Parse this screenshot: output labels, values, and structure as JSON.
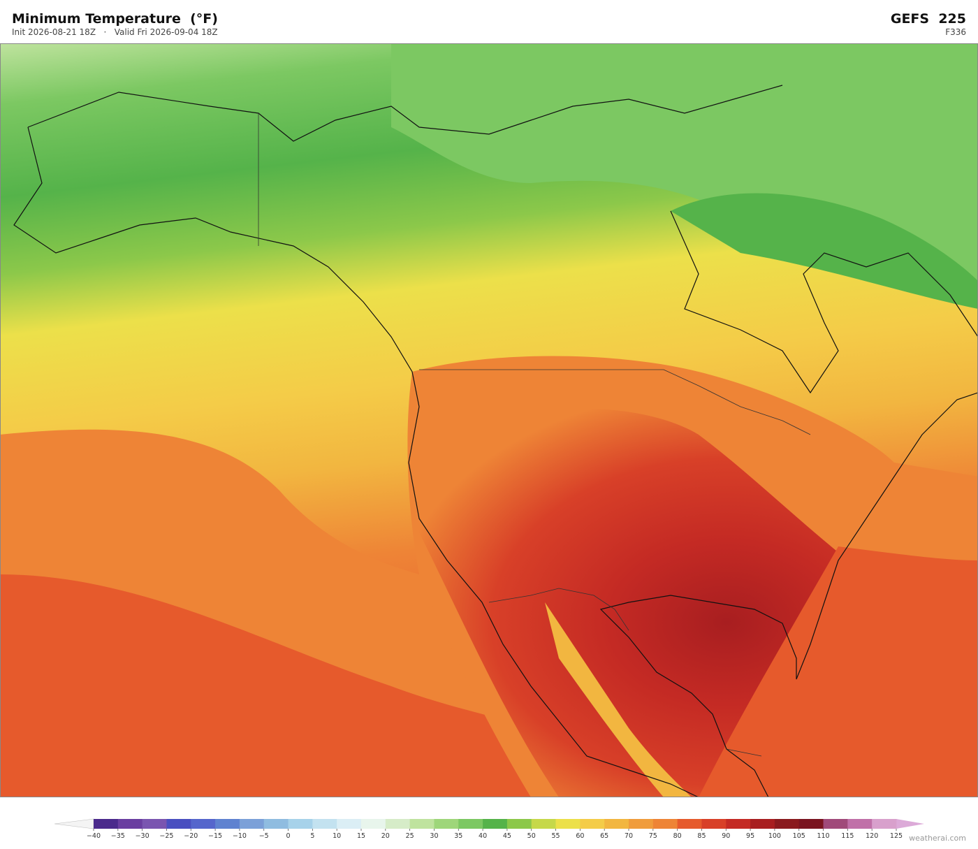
{
  "header": {
    "title": "Minimum Temperature  (°F)",
    "subtitle": "Init 2026-08-21 18Z   ·   Valid Fri 2026-09-04 18Z",
    "model": "GEFS  225",
    "forecast_hour": "F336"
  },
  "colorbar": {
    "ticks": [
      {
        "value": -40,
        "label": "−40"
      },
      {
        "value": -35,
        "label": "−35"
      },
      {
        "value": -30,
        "label": "−30"
      },
      {
        "value": -25,
        "label": "−25"
      },
      {
        "value": -20,
        "label": "−20"
      },
      {
        "value": -15,
        "label": "−15"
      },
      {
        "value": -10,
        "label": "−10"
      },
      {
        "value": -5,
        "label": "−5"
      },
      0,
      5,
      10,
      15,
      20,
      25,
      30,
      35,
      40,
      45,
      50,
      55,
      60,
      65,
      70,
      75,
      80,
      85,
      90,
      95,
      100,
      105,
      110,
      115,
      120,
      125
    ],
    "colors": [
      "#4b2a8c",
      "#6a3ea0",
      "#7a55b0",
      "#4a4fc0",
      "#5566cc",
      "#5f82d0",
      "#7ba0d8",
      "#8fbce0",
      "#a7d2ea",
      "#c3e2f0",
      "#dbeef5",
      "#e8f5ec",
      "#d6ecc8",
      "#bfe39e",
      "#9ed67a",
      "#7cc862",
      "#55b34a",
      "#8cc84a",
      "#c6d84a",
      "#ece04a",
      "#f4cc48",
      "#f2b640",
      "#f09c3c",
      "#ee8436",
      "#e65a2c",
      "#d84028",
      "#c42a24",
      "#a81e20",
      "#8a1a1e",
      "#7a1420",
      "#a04a7a",
      "#c070a8",
      "#d8a0cc"
    ]
  },
  "footer": {
    "credit": "weatherai.com"
  }
}
